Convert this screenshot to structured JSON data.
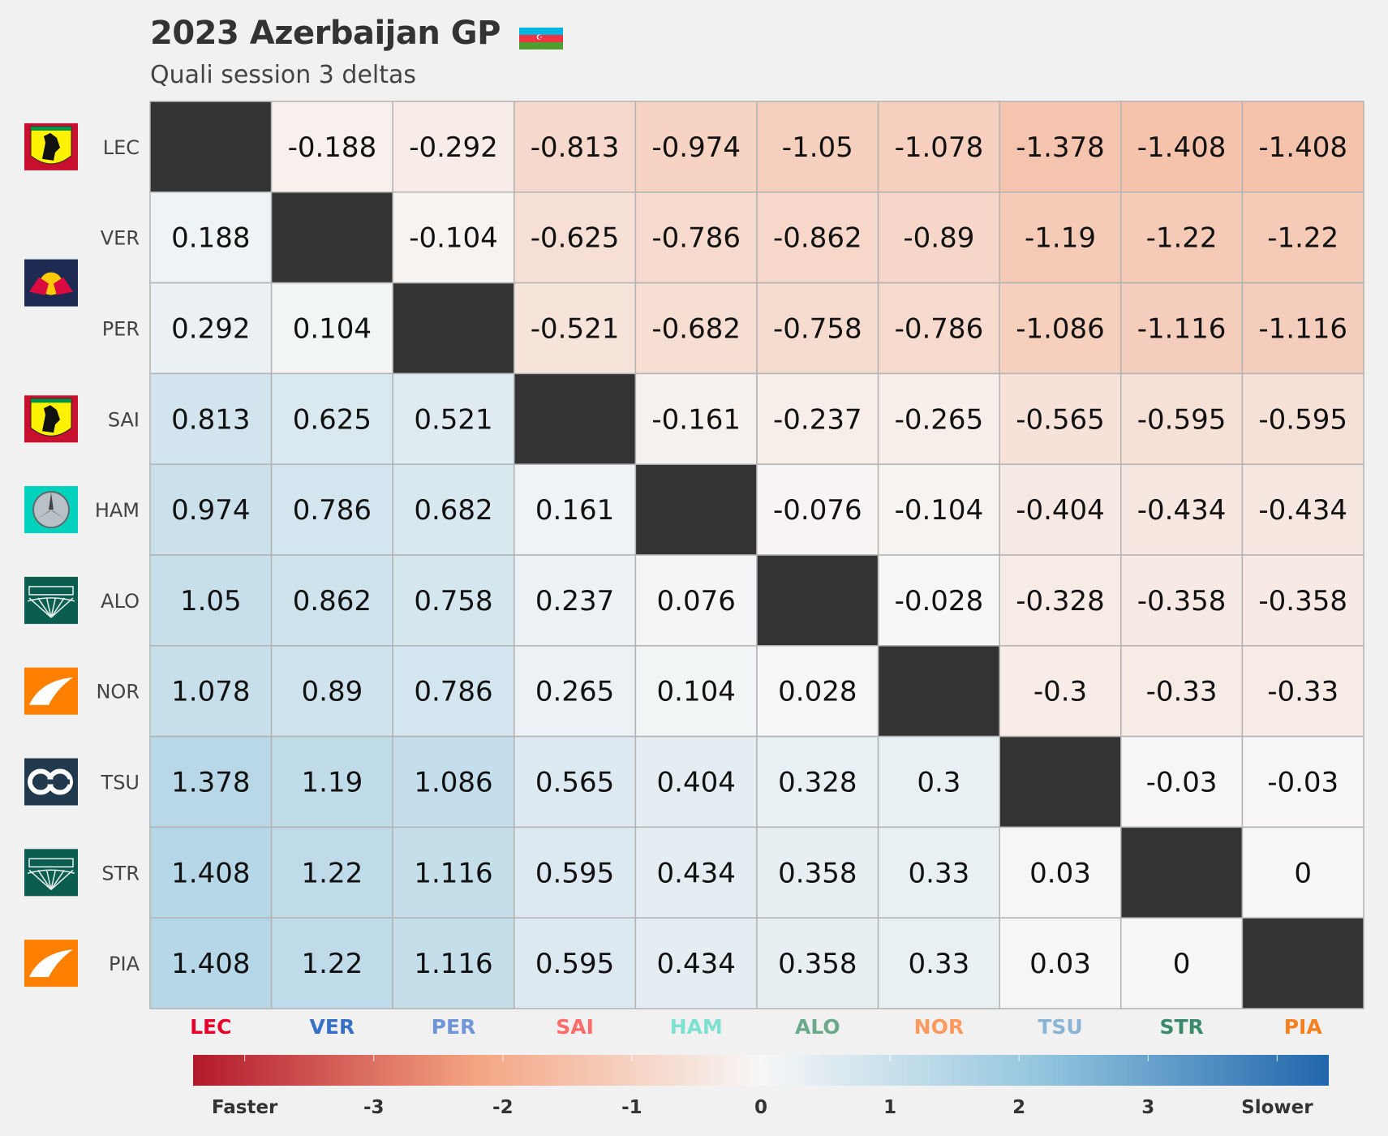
{
  "title": "2023 Azerbaijan GP",
  "subtitle": "Quali session 3 deltas",
  "flag_colors": [
    "#00b5e2",
    "#ef3340",
    "#509e2f"
  ],
  "chart_data": {
    "type": "heatmap",
    "rows": [
      "LEC",
      "VER",
      "PER",
      "SAI",
      "HAM",
      "ALO",
      "NOR",
      "TSU",
      "STR",
      "PIA"
    ],
    "columns": [
      "LEC",
      "VER",
      "PER",
      "SAI",
      "HAM",
      "ALO",
      "NOR",
      "TSU",
      "STR",
      "PIA"
    ],
    "column_colors": [
      "#e8002d",
      "#3671c6",
      "#6f95d9",
      "#ff6b6b",
      "#7ee0d0",
      "#6aaa8a",
      "#ff9a5e",
      "#8ab4d6",
      "#3b8a6a",
      "#f58020"
    ],
    "values": [
      [
        null,
        -0.188,
        -0.292,
        -0.813,
        -0.974,
        -1.05,
        -1.078,
        -1.378,
        -1.408,
        -1.408
      ],
      [
        0.188,
        null,
        -0.104,
        -0.625,
        -0.786,
        -0.862,
        -0.89,
        -1.19,
        -1.22,
        -1.22
      ],
      [
        0.292,
        0.104,
        null,
        -0.521,
        -0.682,
        -0.758,
        -0.786,
        -1.086,
        -1.116,
        -1.116
      ],
      [
        0.813,
        0.625,
        0.521,
        null,
        -0.161,
        -0.237,
        -0.265,
        -0.565,
        -0.595,
        -0.595
      ],
      [
        0.974,
        0.786,
        0.682,
        0.161,
        null,
        -0.076,
        -0.104,
        -0.404,
        -0.434,
        -0.434
      ],
      [
        1.05,
        0.862,
        0.758,
        0.237,
        0.076,
        null,
        -0.028,
        -0.328,
        -0.358,
        -0.358
      ],
      [
        1.078,
        0.89,
        0.786,
        0.265,
        0.104,
        0.028,
        null,
        -0.3,
        -0.33,
        -0.33
      ],
      [
        1.378,
        1.19,
        1.086,
        0.565,
        0.404,
        0.328,
        0.3,
        null,
        -0.03,
        -0.03
      ],
      [
        1.408,
        1.22,
        1.116,
        0.595,
        0.434,
        0.358,
        0.33,
        0.03,
        null,
        0
      ],
      [
        1.408,
        1.22,
        1.116,
        0.595,
        0.434,
        0.358,
        0.33,
        0.03,
        0,
        null
      ]
    ],
    "team_logos": [
      "ferrari-logo",
      "redbull-logo",
      null,
      "ferrari-logo",
      "mercedes-logo",
      "astonmartin-logo",
      "mclaren-logo",
      "alphatauri-logo",
      "astonmartin-logo",
      "mclaren-logo"
    ],
    "colorbar": {
      "range": [
        -4.4,
        4.4
      ],
      "ticks": [
        -4,
        -3,
        -2,
        -1,
        0,
        1,
        2,
        3,
        4
      ],
      "tick_labels": [
        "Faster",
        "-3",
        "-2",
        "-1",
        "0",
        "1",
        "2",
        "3",
        "Slower"
      ],
      "colors": [
        "#b2182b",
        "#f4a582",
        "#f7f7f7",
        "#92c5de",
        "#2166ac"
      ]
    },
    "diagonal_color": "#333333"
  }
}
